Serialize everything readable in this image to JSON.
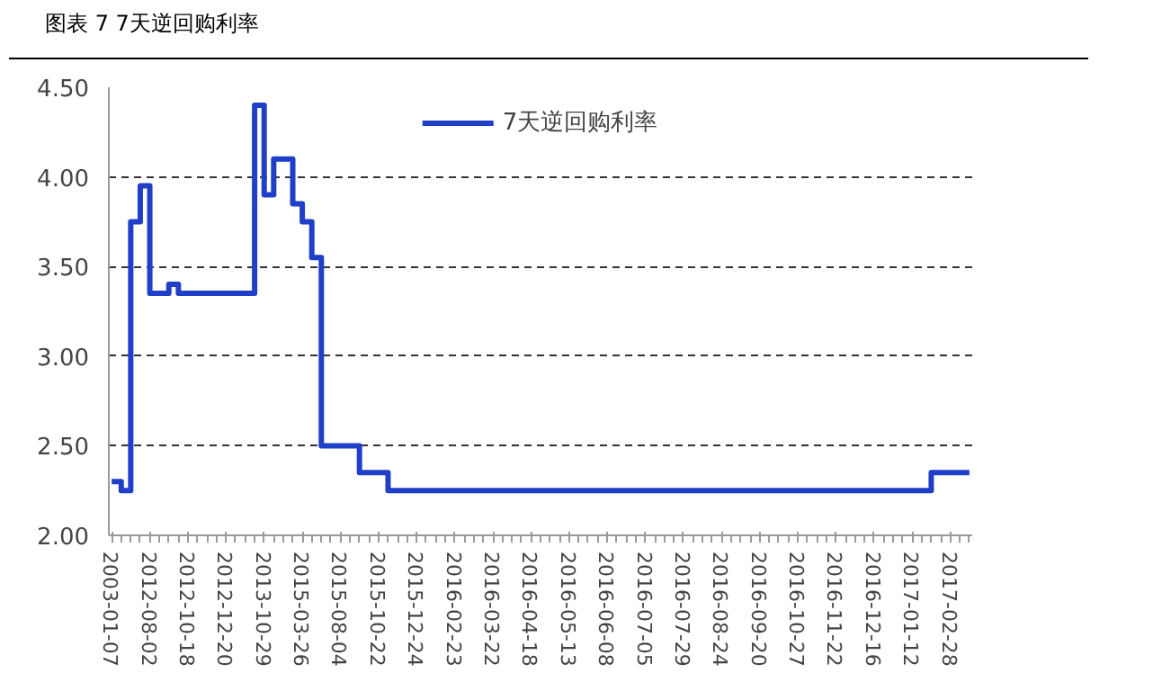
{
  "chart_data": {
    "type": "step",
    "title": "图表 7 7天逆回购利率",
    "categories": [
      "2003-01-07",
      null,
      null,
      null,
      "2012-08-02",
      null,
      null,
      null,
      "2012-10-18",
      null,
      null,
      null,
      "2012-12-20",
      null,
      null,
      null,
      "2013-10-29",
      null,
      null,
      null,
      "2015-03-26",
      null,
      null,
      null,
      "2015-08-04",
      null,
      null,
      null,
      "2015-10-22",
      null,
      null,
      null,
      "2015-12-24",
      null,
      null,
      null,
      "2016-02-23",
      null,
      null,
      null,
      "2016-03-22",
      null,
      null,
      null,
      "2016-04-18",
      null,
      null,
      null,
      "2016-05-13",
      null,
      null,
      null,
      "2016-06-08",
      null,
      null,
      null,
      "2016-07-05",
      null,
      null,
      null,
      "2016-07-29",
      null,
      null,
      null,
      "2016-08-24",
      null,
      null,
      null,
      "2016-09-20",
      null,
      null,
      null,
      "2016-10-27",
      null,
      null,
      null,
      "2016-11-22",
      null,
      null,
      null,
      "2016-12-16",
      null,
      null,
      null,
      "2017-01-12",
      null,
      null,
      null,
      "2017-02-28",
      null,
      null
    ],
    "series": [
      {
        "name": "7天逆回购利率",
        "color": "#1f3fc8",
        "values": [
          2.3,
          2.25,
          3.75,
          3.95,
          3.35,
          3.35,
          3.4,
          3.35,
          3.35,
          3.35,
          3.35,
          3.35,
          3.35,
          3.35,
          3.35,
          4.4,
          3.9,
          4.1,
          4.1,
          3.85,
          3.75,
          3.55,
          2.5,
          2.5,
          2.5,
          2.5,
          2.35,
          2.35,
          2.35,
          2.25,
          2.25,
          2.25,
          2.25,
          2.25,
          2.25,
          2.25,
          2.25,
          2.25,
          2.25,
          2.25,
          2.25,
          2.25,
          2.25,
          2.25,
          2.25,
          2.25,
          2.25,
          2.25,
          2.25,
          2.25,
          2.25,
          2.25,
          2.25,
          2.25,
          2.25,
          2.25,
          2.25,
          2.25,
          2.25,
          2.25,
          2.25,
          2.25,
          2.25,
          2.25,
          2.25,
          2.25,
          2.25,
          2.25,
          2.25,
          2.25,
          2.25,
          2.25,
          2.25,
          2.25,
          2.25,
          2.25,
          2.25,
          2.25,
          2.25,
          2.25,
          2.25,
          2.25,
          2.25,
          2.25,
          2.25,
          2.25,
          2.35,
          2.35,
          2.35,
          2.35,
          2.35
        ]
      }
    ],
    "ylim": [
      2.0,
      4.5
    ],
    "yticks": [
      {
        "value": 2.0,
        "label": "2.00"
      },
      {
        "value": 2.5,
        "label": "2.50"
      },
      {
        "value": 3.0,
        "label": "3.00"
      },
      {
        "value": 3.5,
        "label": "3.50"
      },
      {
        "value": 4.0,
        "label": "4.00"
      },
      {
        "value": 4.5,
        "label": "4.50"
      }
    ],
    "grid": "y",
    "legend": "top",
    "line_style": "solid"
  }
}
